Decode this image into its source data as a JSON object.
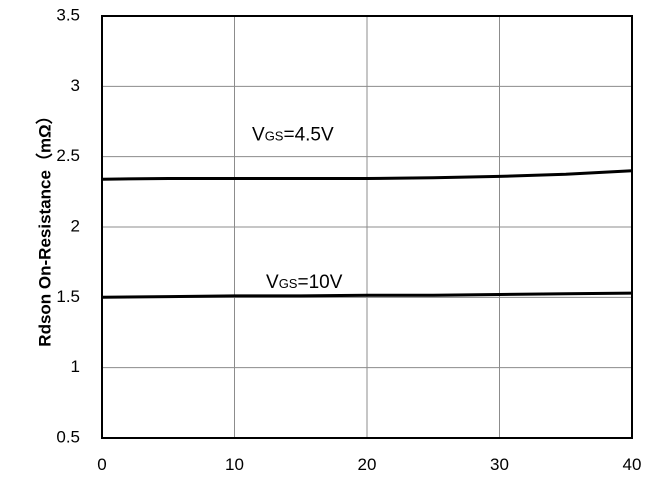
{
  "chart_data": {
    "type": "line",
    "title": "",
    "xlabel": "",
    "ylabel": "Rdson On-Resistance（mΩ）",
    "xlim": [
      0,
      40
    ],
    "ylim": [
      0.5,
      3.5
    ],
    "x_ticks": [
      "0",
      "10",
      "20",
      "30",
      "40"
    ],
    "y_ticks": [
      "0.5",
      "1",
      "1.5",
      "2",
      "2.5",
      "3",
      "3.5"
    ],
    "grid": true,
    "legend": "none",
    "series": [
      {
        "label_main": "V",
        "label_sub": "GS",
        "label_rest": "=4.5V",
        "color": "#000000",
        "x": [
          0,
          5,
          10,
          15,
          20,
          25,
          30,
          35,
          40
        ],
        "y": [
          2.34,
          2.345,
          2.345,
          2.345,
          2.345,
          2.35,
          2.36,
          2.375,
          2.4
        ]
      },
      {
        "label_main": "V",
        "label_sub": "GS",
        "label_rest": "=10V",
        "color": "#000000",
        "x": [
          0,
          5,
          10,
          15,
          20,
          25,
          30,
          35,
          40
        ],
        "y": [
          1.5,
          1.505,
          1.51,
          1.51,
          1.515,
          1.515,
          1.52,
          1.525,
          1.53
        ]
      }
    ]
  }
}
